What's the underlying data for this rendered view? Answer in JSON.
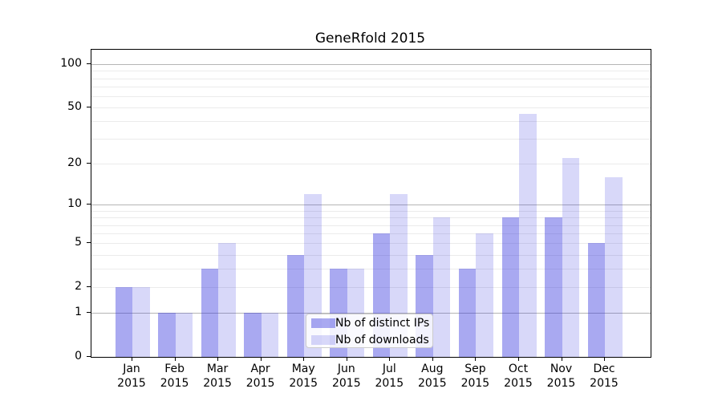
{
  "title": "GeneRfold 2015",
  "chart_data": {
    "type": "bar",
    "title": "GeneRfold 2015",
    "categories": [
      "Jan 2015",
      "Feb 2015",
      "Mar 2015",
      "Apr 2015",
      "May 2015",
      "Jun 2015",
      "Jul 2015",
      "Aug 2015",
      "Sep 2015",
      "Oct 2015",
      "Nov 2015",
      "Dec 2015"
    ],
    "series": [
      {
        "name": "Nb of distinct IPs",
        "values": [
          2,
          1,
          3,
          1,
          4,
          3,
          6,
          4,
          3,
          8,
          8,
          5
        ],
        "color": "rgba(40,40,220,0.40)"
      },
      {
        "name": "Nb of downloads",
        "values": [
          2,
          1,
          5,
          1,
          12,
          3,
          12,
          8,
          6,
          45,
          22,
          16
        ],
        "color": "rgba(40,40,220,0.18)"
      }
    ],
    "xlabel": "",
    "ylabel": "",
    "y_scale": "log-like: y position proportional to log10(value+1)",
    "y_tick_values": [
      0,
      1,
      2,
      5,
      10,
      20,
      50,
      100
    ],
    "y_tick_labels": [
      "0",
      "1",
      "2",
      "5",
      "10",
      "20",
      "50",
      "100"
    ],
    "y_minor_gridlines": [
      2,
      3,
      4,
      5,
      6,
      7,
      8,
      9,
      20,
      30,
      40,
      50,
      60,
      70,
      80,
      90
    ],
    "y_major_gridlines": [
      1,
      10,
      100
    ],
    "ylim": [
      0,
      126
    ],
    "grid": "horizontal",
    "legend_position": "lower-center"
  },
  "colors": {
    "bar_distinct_ips": "rgba(40,40,220,0.40)",
    "bar_downloads": "rgba(40,40,220,0.18)",
    "major_gridline": "#b5b5b5",
    "minor_gridline": "#ebebeb",
    "axis_spine": "#000000",
    "background": "#ffffff",
    "legend_border": "#cccccc"
  }
}
